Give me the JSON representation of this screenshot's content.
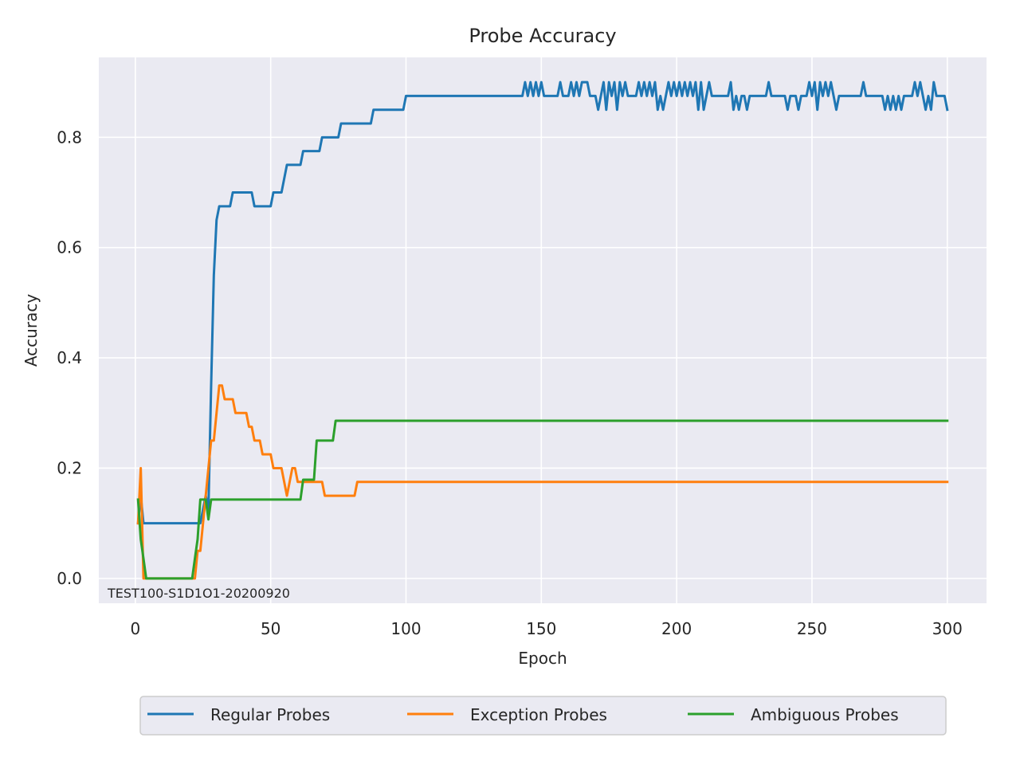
{
  "chart_data": {
    "type": "line",
    "title": "Probe Accuracy",
    "xlabel": "Epoch",
    "ylabel": "Accuracy",
    "xlim": [
      -13.5,
      314.5
    ],
    "ylim": [
      -0.045,
      0.945
    ],
    "xticks": [
      0,
      50,
      100,
      150,
      200,
      250,
      300
    ],
    "yticks": [
      0.0,
      0.2,
      0.4,
      0.6,
      0.8
    ],
    "ytick_labels": [
      "0.0",
      "0.2",
      "0.4",
      "0.6",
      "0.8"
    ],
    "grid": true,
    "legend_position": "bottom-center",
    "annotation": "TEST100-S1D1O1-20200920",
    "series": [
      {
        "name": "Regular Probes",
        "color": "#1f77b4",
        "points": [
          [
            1,
            0.1
          ],
          [
            2,
            0.15
          ],
          [
            3,
            0.1
          ],
          [
            22,
            0.1
          ],
          [
            23,
            0.1
          ],
          [
            24,
            0.1
          ],
          [
            25,
            0.125
          ],
          [
            26,
            0.15
          ],
          [
            27,
            0.125
          ],
          [
            28,
            0.35
          ],
          [
            29,
            0.55
          ],
          [
            30,
            0.65
          ],
          [
            31,
            0.675
          ],
          [
            35,
            0.675
          ],
          [
            36,
            0.7
          ],
          [
            43,
            0.7
          ],
          [
            44,
            0.675
          ],
          [
            50,
            0.675
          ],
          [
            51,
            0.7
          ],
          [
            54,
            0.7
          ],
          [
            55,
            0.725
          ],
          [
            56,
            0.75
          ],
          [
            61,
            0.75
          ],
          [
            62,
            0.775
          ],
          [
            68,
            0.775
          ],
          [
            69,
            0.8
          ],
          [
            75,
            0.8
          ],
          [
            76,
            0.825
          ],
          [
            87,
            0.825
          ],
          [
            88,
            0.85
          ],
          [
            99,
            0.85
          ],
          [
            100,
            0.875
          ],
          [
            143,
            0.875
          ],
          [
            144,
            0.9
          ],
          [
            145,
            0.875
          ],
          [
            146,
            0.9
          ],
          [
            147,
            0.875
          ],
          [
            148,
            0.9
          ],
          [
            149,
            0.875
          ],
          [
            150,
            0.9
          ],
          [
            151,
            0.875
          ],
          [
            156,
            0.875
          ],
          [
            157,
            0.9
          ],
          [
            158,
            0.875
          ],
          [
            160,
            0.875
          ],
          [
            161,
            0.9
          ],
          [
            162,
            0.875
          ],
          [
            163,
            0.9
          ],
          [
            164,
            0.875
          ],
          [
            165,
            0.9
          ],
          [
            167,
            0.9
          ],
          [
            168,
            0.875
          ],
          [
            170,
            0.875
          ],
          [
            171,
            0.85
          ],
          [
            172,
            0.875
          ],
          [
            173,
            0.9
          ],
          [
            174,
            0.85
          ],
          [
            175,
            0.9
          ],
          [
            176,
            0.875
          ],
          [
            177,
            0.9
          ],
          [
            178,
            0.85
          ],
          [
            179,
            0.9
          ],
          [
            180,
            0.875
          ],
          [
            181,
            0.9
          ],
          [
            182,
            0.875
          ],
          [
            185,
            0.875
          ],
          [
            186,
            0.9
          ],
          [
            187,
            0.875
          ],
          [
            188,
            0.9
          ],
          [
            189,
            0.875
          ],
          [
            190,
            0.9
          ],
          [
            191,
            0.875
          ],
          [
            192,
            0.9
          ],
          [
            193,
            0.85
          ],
          [
            194,
            0.875
          ],
          [
            195,
            0.85
          ],
          [
            196,
            0.875
          ],
          [
            197,
            0.9
          ],
          [
            198,
            0.875
          ],
          [
            199,
            0.9
          ],
          [
            200,
            0.875
          ],
          [
            201,
            0.9
          ],
          [
            202,
            0.875
          ],
          [
            203,
            0.9
          ],
          [
            204,
            0.875
          ],
          [
            205,
            0.9
          ],
          [
            206,
            0.875
          ],
          [
            207,
            0.9
          ],
          [
            208,
            0.85
          ],
          [
            209,
            0.9
          ],
          [
            210,
            0.85
          ],
          [
            211,
            0.875
          ],
          [
            212,
            0.9
          ],
          [
            213,
            0.875
          ],
          [
            219,
            0.875
          ],
          [
            220,
            0.9
          ],
          [
            221,
            0.85
          ],
          [
            222,
            0.875
          ],
          [
            223,
            0.85
          ],
          [
            224,
            0.875
          ],
          [
            225,
            0.875
          ],
          [
            226,
            0.85
          ],
          [
            227,
            0.875
          ],
          [
            233,
            0.875
          ],
          [
            234,
            0.9
          ],
          [
            235,
            0.875
          ],
          [
            240,
            0.875
          ],
          [
            241,
            0.85
          ],
          [
            242,
            0.875
          ],
          [
            244,
            0.875
          ],
          [
            245,
            0.85
          ],
          [
            246,
            0.875
          ],
          [
            248,
            0.875
          ],
          [
            249,
            0.9
          ],
          [
            250,
            0.875
          ],
          [
            251,
            0.9
          ],
          [
            252,
            0.85
          ],
          [
            253,
            0.9
          ],
          [
            254,
            0.875
          ],
          [
            255,
            0.9
          ],
          [
            256,
            0.875
          ],
          [
            257,
            0.9
          ],
          [
            258,
            0.875
          ],
          [
            259,
            0.85
          ],
          [
            260,
            0.875
          ],
          [
            268,
            0.875
          ],
          [
            269,
            0.9
          ],
          [
            270,
            0.875
          ],
          [
            276,
            0.875
          ],
          [
            277,
            0.85
          ],
          [
            278,
            0.875
          ],
          [
            279,
            0.85
          ],
          [
            280,
            0.875
          ],
          [
            281,
            0.85
          ],
          [
            282,
            0.875
          ],
          [
            283,
            0.85
          ],
          [
            284,
            0.875
          ],
          [
            287,
            0.875
          ],
          [
            288,
            0.9
          ],
          [
            289,
            0.875
          ],
          [
            290,
            0.9
          ],
          [
            291,
            0.875
          ],
          [
            292,
            0.85
          ],
          [
            293,
            0.875
          ],
          [
            294,
            0.85
          ],
          [
            295,
            0.9
          ],
          [
            296,
            0.875
          ],
          [
            299,
            0.875
          ],
          [
            300,
            0.85
          ]
        ]
      },
      {
        "name": "Exception Probes",
        "color": "#ff7f0e",
        "points": [
          [
            1,
            0.1
          ],
          [
            2,
            0.2
          ],
          [
            3,
            0.0
          ],
          [
            22,
            0.0
          ],
          [
            23,
            0.05
          ],
          [
            24,
            0.05
          ],
          [
            25,
            0.1
          ],
          [
            26,
            0.15
          ],
          [
            27,
            0.2
          ],
          [
            28,
            0.25
          ],
          [
            29,
            0.25
          ],
          [
            30,
            0.3
          ],
          [
            31,
            0.35
          ],
          [
            32,
            0.35
          ],
          [
            33,
            0.325
          ],
          [
            35,
            0.325
          ],
          [
            36,
            0.325
          ],
          [
            37,
            0.3
          ],
          [
            41,
            0.3
          ],
          [
            42,
            0.275
          ],
          [
            43,
            0.275
          ],
          [
            44,
            0.25
          ],
          [
            46,
            0.25
          ],
          [
            47,
            0.225
          ],
          [
            50,
            0.225
          ],
          [
            51,
            0.2
          ],
          [
            54,
            0.2
          ],
          [
            55,
            0.175
          ],
          [
            56,
            0.15
          ],
          [
            57,
            0.175
          ],
          [
            58,
            0.2
          ],
          [
            59,
            0.2
          ],
          [
            60,
            0.175
          ],
          [
            69,
            0.175
          ],
          [
            70,
            0.15
          ],
          [
            81,
            0.15
          ],
          [
            82,
            0.175
          ],
          [
            300,
            0.175
          ]
        ]
      },
      {
        "name": "Ambiguous Probes",
        "color": "#2ca02c",
        "points": [
          [
            1,
            0.143
          ],
          [
            2,
            0.071
          ],
          [
            3,
            0.036
          ],
          [
            4,
            0.0
          ],
          [
            21,
            0.0
          ],
          [
            22,
            0.036
          ],
          [
            23,
            0.071
          ],
          [
            24,
            0.143
          ],
          [
            26,
            0.143
          ],
          [
            27,
            0.107
          ],
          [
            28,
            0.143
          ],
          [
            61,
            0.143
          ],
          [
            62,
            0.179
          ],
          [
            66,
            0.179
          ],
          [
            67,
            0.25
          ],
          [
            73,
            0.25
          ],
          [
            74,
            0.286
          ],
          [
            300,
            0.286
          ]
        ]
      }
    ]
  }
}
